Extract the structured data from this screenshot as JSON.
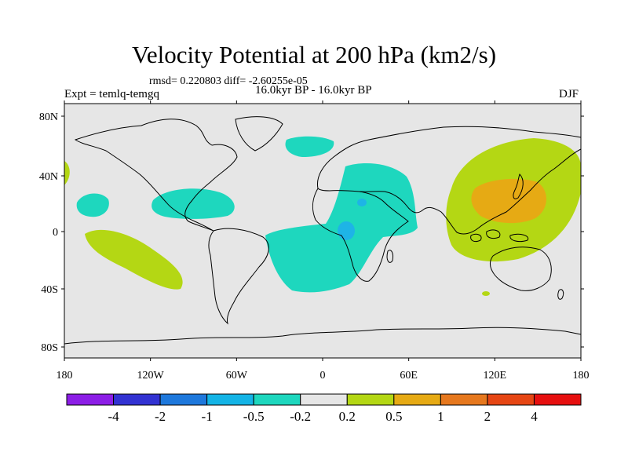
{
  "title": "Velocity Potential at 200 hPa (km2/s)",
  "stats_line": "rmsd= 0.220803 diff= -2.60255e-05",
  "period": "16.0kyr BP - 16.0kyr BP",
  "experiment": "Expt = temlq-temgq",
  "season": "DJF",
  "axes": {
    "lat_labels": [
      "80N",
      "40N",
      "0",
      "40S",
      "80S"
    ],
    "lon_labels": [
      "180",
      "120W",
      "60W",
      "0",
      "60E",
      "120E",
      "180"
    ]
  },
  "colorbar": {
    "colors": [
      "#8c1ee6",
      "#3232d2",
      "#1e78dc",
      "#14b4e6",
      "#1ed7be",
      "#e6e6e6",
      "#b4d714",
      "#e6aa14",
      "#e6781e",
      "#e64614",
      "#e60f0f"
    ],
    "labels": [
      "-4",
      "-2",
      "-1",
      "-0.5",
      "-0.2",
      "0.2",
      "0.5",
      "1",
      "2",
      "4"
    ]
  },
  "colors": {
    "ocean_bg": "#e6e6e6",
    "neg_light": "#1ed7be",
    "neg_mid": "#1eb4e6",
    "pos_light": "#b4d714",
    "pos_mid": "#e6aa14"
  }
}
